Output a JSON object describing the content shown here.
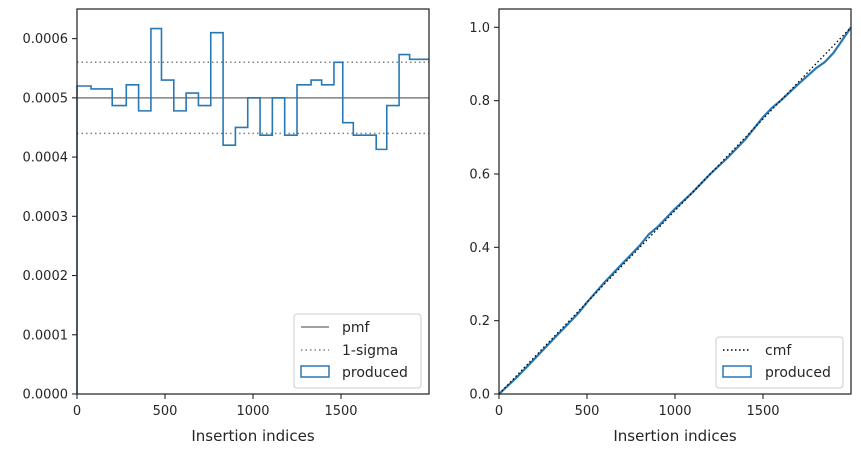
{
  "chart_data": [
    {
      "type": "line",
      "subtype": "step-histogram",
      "xlabel": "Insertion indices",
      "ylabel": "",
      "xlim": [
        0,
        2000
      ],
      "ylim": [
        0,
        0.00065
      ],
      "xticks": [
        0,
        500,
        1000,
        1500
      ],
      "xtick_labels": [
        "0",
        "500",
        "1000",
        "1500"
      ],
      "yticks": [
        0,
        0.0001,
        0.0002,
        0.0003,
        0.0004,
        0.0005,
        0.0006
      ],
      "ytick_labels": [
        "0.0000",
        "0.0001",
        "0.0002",
        "0.0003",
        "0.0004",
        "0.0005",
        "0.0006"
      ],
      "grid": false,
      "legend_position": "lower-right",
      "legend": [
        "pmf",
        "1-sigma",
        "produced"
      ],
      "reference_lines": {
        "pmf": 0.0005,
        "sigma_low": 0.00044,
        "sigma_high": 0.00056
      },
      "bin_edges": [
        0,
        80,
        200,
        280,
        350,
        420,
        480,
        550,
        620,
        690,
        760,
        830,
        900,
        970,
        1040,
        1110,
        1180,
        1250,
        1330,
        1390,
        1460,
        1510,
        1570,
        1630,
        1700,
        1760,
        1830,
        1890,
        1960,
        2000
      ],
      "values": [
        0.00052,
        0.000515,
        0.000487,
        0.000522,
        0.000478,
        0.000617,
        0.00053,
        0.000478,
        0.000508,
        0.000487,
        0.00061,
        0.00042,
        0.00045,
        0.0005,
        0.000437,
        0.0005,
        0.000437,
        0.000522,
        0.00053,
        0.000522,
        0.00056,
        0.000458,
        0.000437,
        0.000437,
        0.000413,
        0.000487,
        0.000573,
        0.000565,
        0.000565
      ],
      "colors": {
        "produced": "#2878b5",
        "pmf": "#808080",
        "sigma": "#808080"
      }
    },
    {
      "type": "line",
      "xlabel": "Insertion indices",
      "ylabel": "",
      "xlim": [
        0,
        2000
      ],
      "ylim": [
        0,
        1.05
      ],
      "xticks": [
        0,
        500,
        1000,
        1500
      ],
      "xtick_labels": [
        "0",
        "500",
        "1000",
        "1500"
      ],
      "yticks": [
        0,
        0.2,
        0.4,
        0.6,
        0.8,
        1.0
      ],
      "ytick_labels": [
        "0.0",
        "0.2",
        "0.4",
        "0.6",
        "0.8",
        "1.0"
      ],
      "grid": false,
      "legend_position": "lower-right",
      "legend": [
        "cmf",
        "produced"
      ],
      "cmf": {
        "x": [
          0,
          2000
        ],
        "y": [
          0,
          1.0
        ]
      },
      "produced": {
        "x": [
          0,
          100,
          200,
          300,
          400,
          450,
          500,
          600,
          700,
          800,
          850,
          900,
          1000,
          1100,
          1200,
          1300,
          1400,
          1500,
          1550,
          1600,
          1700,
          1800,
          1850,
          1900,
          1950,
          2000
        ],
        "y": [
          0,
          0.045,
          0.095,
          0.145,
          0.195,
          0.22,
          0.25,
          0.305,
          0.355,
          0.405,
          0.435,
          0.455,
          0.505,
          0.55,
          0.6,
          0.645,
          0.695,
          0.755,
          0.78,
          0.8,
          0.845,
          0.888,
          0.905,
          0.93,
          0.965,
          1.0
        ]
      },
      "colors": {
        "produced": "#2878b5",
        "cmf": "#000000"
      }
    }
  ]
}
